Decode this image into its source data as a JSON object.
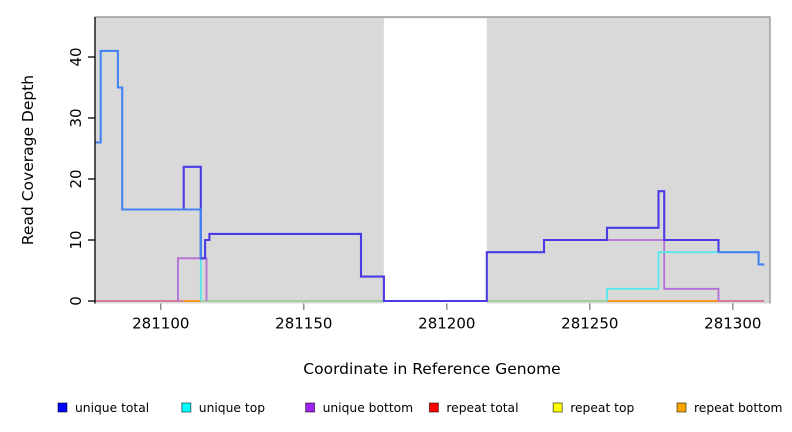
{
  "chart_data": {
    "type": "line",
    "subtype": "step-coverage-plot",
    "title": "",
    "xlabel": "Coordinate in Reference Genome",
    "ylabel": "Read Coverage Depth",
    "xlim": [
      281077,
      281313
    ],
    "ylim": [
      0,
      46.5
    ],
    "x_ticks": [
      281100,
      281150,
      281200,
      281250,
      281300
    ],
    "y_ticks": [
      0,
      10,
      20,
      30,
      40
    ],
    "grid": false,
    "plot_background": "#d9d9d9",
    "border_color": "#9b9b9b",
    "masked_region": {
      "from": 281178,
      "to": 281214,
      "color": "#ffffff"
    },
    "legend_position": "bottom",
    "legend": [
      {
        "label": "unique total",
        "color": "#0000ff"
      },
      {
        "label": "unique top",
        "color": "#00ffff"
      },
      {
        "label": "unique bottom",
        "color": "#a020f0"
      },
      {
        "label": "repeat total",
        "color": "#ff0000"
      },
      {
        "label": "repeat top",
        "color": "#ffff00"
      },
      {
        "label": "repeat bottom",
        "color": "#ffa500"
      }
    ],
    "segments": [
      {
        "name": "baseline-repeat-total-left",
        "series": "repeat total",
        "color": "#d2608e",
        "width": 1.6,
        "points": [
          [
            281077,
            0
          ],
          [
            281108,
            0
          ]
        ]
      },
      {
        "name": "baseline-green-mix-1",
        "series": "unique top + repeat top",
        "color": "#8bcc8e",
        "width": 1.6,
        "points": [
          [
            281114,
            0
          ],
          [
            281178,
            0
          ]
        ]
      },
      {
        "name": "baseline-green-mix-2",
        "series": "unique top + repeat top",
        "color": "#8bcc8e",
        "width": 1.6,
        "points": [
          [
            281214,
            0
          ],
          [
            281256,
            0
          ]
        ]
      },
      {
        "name": "baseline-repeat-total-right",
        "series": "repeat total",
        "color": "#d2608e",
        "width": 1.6,
        "points": [
          [
            281295,
            0
          ],
          [
            281311,
            0
          ]
        ]
      },
      {
        "name": "baseline-repeat-bottom-1",
        "series": "repeat bottom",
        "color": "#ff8c0a",
        "width": 1.8,
        "points": [
          [
            281108,
            0
          ],
          [
            281114,
            0
          ]
        ]
      },
      {
        "name": "baseline-repeat-bottom-2",
        "series": "repeat bottom",
        "color": "#ff8c0a",
        "width": 1.8,
        "points": [
          [
            281256,
            0
          ],
          [
            281295,
            0
          ]
        ]
      },
      {
        "name": "unique-bottom-left",
        "series": "unique bottom",
        "color": "#b36fd6",
        "width": 1.8,
        "points": [
          [
            281106,
            0
          ],
          [
            281106,
            7
          ],
          [
            281116,
            7
          ],
          [
            281116,
            0
          ]
        ]
      },
      {
        "name": "unique-bottom-right",
        "series": "unique bottom",
        "color": "#b36fd6",
        "width": 1.8,
        "points": [
          [
            281256,
            10
          ],
          [
            281276,
            10
          ],
          [
            281276,
            2
          ],
          [
            281295,
            2
          ],
          [
            281295,
            0
          ]
        ]
      },
      {
        "name": "unique-top-left",
        "series": "unique top",
        "color": "#55e6eb",
        "width": 1.8,
        "points": [
          [
            281108,
            15
          ],
          [
            281114,
            15
          ],
          [
            281114,
            0
          ]
        ]
      },
      {
        "name": "unique-top-right",
        "series": "unique top",
        "color": "#55e6eb",
        "width": 1.8,
        "points": [
          [
            281256,
            0
          ],
          [
            281256,
            2
          ],
          [
            281274,
            2
          ],
          [
            281274,
            8
          ],
          [
            281295,
            8
          ]
        ]
      },
      {
        "name": "unique-total-main",
        "series": "unique total",
        "color": "#4b3be4",
        "width": 2.1,
        "points": [
          [
            281108,
            15
          ],
          [
            281108,
            22
          ],
          [
            281114,
            22
          ],
          [
            281114,
            7
          ],
          [
            281115.5,
            7
          ],
          [
            281115.5,
            10
          ],
          [
            281117,
            10
          ],
          [
            281117,
            11
          ],
          [
            281170,
            11
          ],
          [
            281170,
            4
          ],
          [
            281178,
            4
          ],
          [
            281178,
            0
          ],
          [
            281214,
            0
          ],
          [
            281214,
            8
          ],
          [
            281234,
            8
          ],
          [
            281234,
            10
          ],
          [
            281256,
            10
          ],
          [
            281256,
            12
          ],
          [
            281274,
            12
          ],
          [
            281274,
            18
          ],
          [
            281276,
            18
          ],
          [
            281276,
            10
          ],
          [
            281295,
            10
          ],
          [
            281295,
            8
          ]
        ]
      },
      {
        "name": "unique-total-top-overlap-left",
        "series": "unique total + unique top",
        "color": "#4382f2",
        "width": 2.1,
        "points": [
          [
            281077,
            26
          ],
          [
            281079,
            26
          ],
          [
            281079,
            41
          ],
          [
            281085,
            41
          ],
          [
            281085,
            35
          ],
          [
            281086.5,
            35
          ],
          [
            281086.5,
            15
          ],
          [
            281114,
            15
          ],
          [
            281114,
            7
          ]
        ]
      },
      {
        "name": "unique-total-top-overlap-right",
        "series": "unique total + unique top",
        "color": "#4382f2",
        "width": 2.1,
        "points": [
          [
            281295,
            8
          ],
          [
            281309,
            8
          ],
          [
            281309,
            6
          ],
          [
            281311,
            6
          ]
        ]
      }
    ]
  }
}
